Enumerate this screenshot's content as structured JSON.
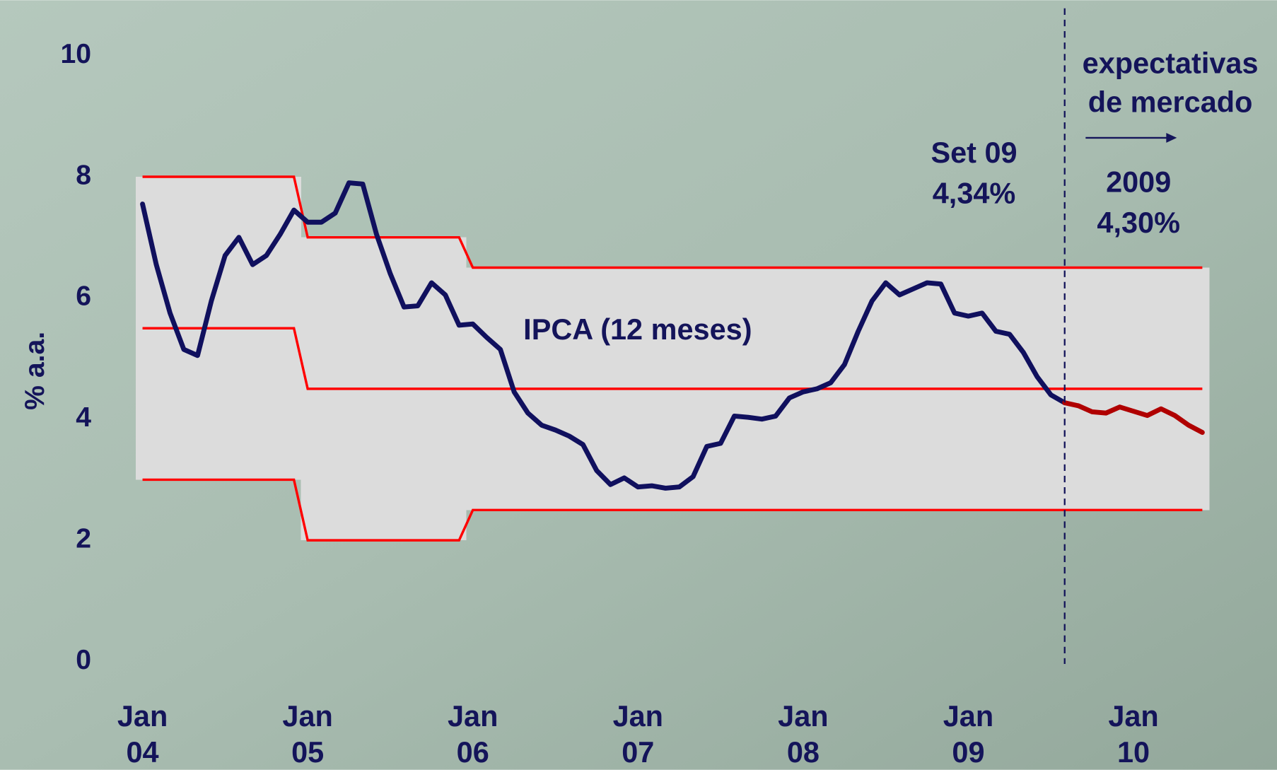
{
  "chart_data": {
    "type": "line",
    "y_label": "% a.a.",
    "categories": [
      "Jan 04",
      null,
      null,
      null,
      null,
      null,
      null,
      null,
      null,
      null,
      null,
      null,
      "Jan 05",
      null,
      null,
      null,
      null,
      null,
      null,
      null,
      null,
      null,
      null,
      null,
      "Jan 06",
      null,
      null,
      null,
      null,
      null,
      null,
      null,
      null,
      null,
      null,
      null,
      "Jan 07",
      null,
      null,
      null,
      null,
      null,
      null,
      null,
      null,
      null,
      null,
      null,
      "Jan 08",
      null,
      null,
      null,
      null,
      null,
      null,
      null,
      null,
      null,
      null,
      null,
      "Jan 09",
      null,
      null,
      null,
      null,
      null,
      null,
      null,
      null,
      null,
      null,
      null,
      "Jan 10",
      null,
      null,
      null,
      null,
      null
    ],
    "ylim": [
      0,
      10
    ],
    "yticks": [
      0,
      2,
      4,
      6,
      8,
      10
    ],
    "series": [
      {
        "name": "IPCA (12 meses)",
        "color": "#10105e",
        "values": [
          7.55,
          6.55,
          5.75,
          5.15,
          5.05,
          5.95,
          6.7,
          7.0,
          6.55,
          6.7,
          7.05,
          7.45,
          7.25,
          7.25,
          7.4,
          7.9,
          7.88,
          7.05,
          6.4,
          5.85,
          5.87,
          6.25,
          6.05,
          5.55,
          5.57,
          5.35,
          5.15,
          4.45,
          4.1,
          3.9,
          3.82,
          3.72,
          3.58,
          3.15,
          2.92,
          3.03,
          2.88,
          2.9,
          2.86,
          2.88,
          3.05,
          3.55,
          3.6,
          4.05,
          4.03,
          4.0,
          4.05,
          4.35,
          4.45,
          4.5,
          4.6,
          4.9,
          5.45,
          5.95,
          6.25,
          6.05,
          6.15,
          6.25,
          6.23,
          5.75,
          5.7,
          5.75,
          5.45,
          5.4,
          5.1,
          4.7,
          4.4,
          4.27,
          null,
          null,
          null,
          null,
          null,
          null,
          null,
          null,
          null,
          null
        ]
      },
      {
        "color": "#b00000",
        "values": [
          null,
          null,
          null,
          null,
          null,
          null,
          null,
          null,
          null,
          null,
          null,
          null,
          null,
          null,
          null,
          null,
          null,
          null,
          null,
          null,
          null,
          null,
          null,
          null,
          null,
          null,
          null,
          null,
          null,
          null,
          null,
          null,
          null,
          null,
          null,
          null,
          null,
          null,
          null,
          null,
          null,
          null,
          null,
          null,
          null,
          null,
          null,
          null,
          null,
          null,
          null,
          null,
          null,
          null,
          null,
          null,
          null,
          null,
          null,
          null,
          null,
          null,
          null,
          null,
          null,
          null,
          null,
          4.27,
          4.22,
          4.12,
          4.1,
          4.2,
          4.13,
          4.06,
          4.17,
          4.06,
          3.9,
          3.78
        ]
      }
    ],
    "bands": {
      "color": "#ff0000",
      "fill": "#dcdcdc",
      "upper": [
        8,
        8,
        8,
        8,
        8,
        8,
        8,
        8,
        8,
        8,
        8,
        8,
        7,
        7,
        7,
        7,
        7,
        7,
        7,
        7,
        7,
        7,
        7,
        7,
        6.5,
        6.5,
        6.5,
        6.5,
        6.5,
        6.5,
        6.5,
        6.5,
        6.5,
        6.5,
        6.5,
        6.5,
        6.5,
        6.5,
        6.5,
        6.5,
        6.5,
        6.5,
        6.5,
        6.5,
        6.5,
        6.5,
        6.5,
        6.5,
        6.5,
        6.5,
        6.5,
        6.5,
        6.5,
        6.5,
        6.5,
        6.5,
        6.5,
        6.5,
        6.5,
        6.5,
        6.5,
        6.5,
        6.5,
        6.5,
        6.5,
        6.5,
        6.5,
        6.5,
        6.5,
        6.5,
        6.5,
        6.5,
        6.5,
        6.5,
        6.5,
        6.5,
        6.5,
        6.5
      ],
      "center": [
        5.5,
        5.5,
        5.5,
        5.5,
        5.5,
        5.5,
        5.5,
        5.5,
        5.5,
        5.5,
        5.5,
        5.5,
        4.5,
        4.5,
        4.5,
        4.5,
        4.5,
        4.5,
        4.5,
        4.5,
        4.5,
        4.5,
        4.5,
        4.5,
        4.5,
        4.5,
        4.5,
        4.5,
        4.5,
        4.5,
        4.5,
        4.5,
        4.5,
        4.5,
        4.5,
        4.5,
        4.5,
        4.5,
        4.5,
        4.5,
        4.5,
        4.5,
        4.5,
        4.5,
        4.5,
        4.5,
        4.5,
        4.5,
        4.5,
        4.5,
        4.5,
        4.5,
        4.5,
        4.5,
        4.5,
        4.5,
        4.5,
        4.5,
        4.5,
        4.5,
        4.5,
        4.5,
        4.5,
        4.5,
        4.5,
        4.5,
        4.5,
        4.5,
        4.5,
        4.5,
        4.5,
        4.5,
        4.5,
        4.5,
        4.5,
        4.5,
        4.5,
        4.5
      ],
      "lower": [
        3,
        3,
        3,
        3,
        3,
        3,
        3,
        3,
        3,
        3,
        3,
        3,
        2,
        2,
        2,
        2,
        2,
        2,
        2,
        2,
        2,
        2,
        2,
        2,
        2.5,
        2.5,
        2.5,
        2.5,
        2.5,
        2.5,
        2.5,
        2.5,
        2.5,
        2.5,
        2.5,
        2.5,
        2.5,
        2.5,
        2.5,
        2.5,
        2.5,
        2.5,
        2.5,
        2.5,
        2.5,
        2.5,
        2.5,
        2.5,
        2.5,
        2.5,
        2.5,
        2.5,
        2.5,
        2.5,
        2.5,
        2.5,
        2.5,
        2.5,
        2.5,
        2.5,
        2.5,
        2.5,
        2.5,
        2.5,
        2.5,
        2.5,
        2.5,
        2.5,
        2.5,
        2.5,
        2.5,
        2.5,
        2.5,
        2.5,
        2.5,
        2.5,
        2.5,
        2.5
      ]
    },
    "annotations": [
      "Set 09",
      "4,34%",
      "expectativas",
      "de mercado",
      "2009",
      "4,30%"
    ]
  }
}
